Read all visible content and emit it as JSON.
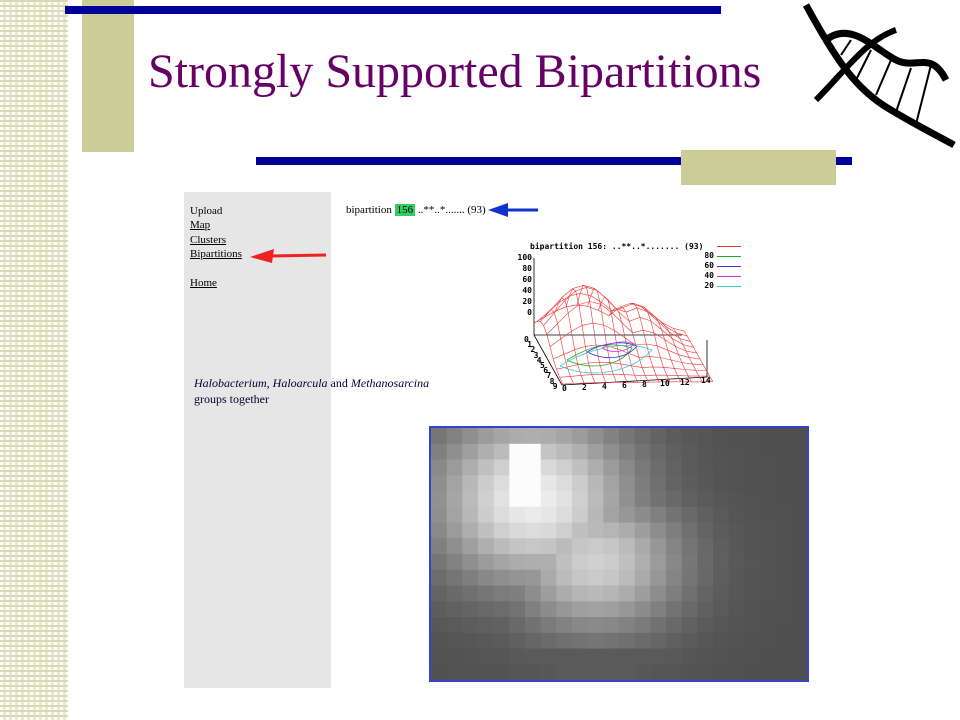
{
  "slide": {
    "title": "Strongly Supported Bipartitions"
  },
  "nav": {
    "upload": "Upload",
    "map": "Map",
    "clusters": "Clusters",
    "bipartitions": "Bipartitions",
    "home": "Home"
  },
  "bipartition": {
    "label": "bipartition",
    "number": "156",
    "pattern": "..**..*.......",
    "support": "(93)"
  },
  "description": {
    "taxon1": "Halobacterium,",
    "taxon2": "Haloarcula",
    "and": "and",
    "taxon3": "Methanosarcina",
    "rest": "groups together"
  },
  "plot": {
    "heading": "bipartition 156: ..**..*....... (93)",
    "legend": [
      "80",
      "60",
      "40",
      "20"
    ],
    "legend_colors": [
      "#ee3333",
      "#22aa22",
      "#3333ee",
      "#cc33cc",
      "#33cccc"
    ],
    "z_ticks": [
      "100",
      "80",
      "60",
      "40",
      "20",
      "0"
    ],
    "x_ticks": [
      "0",
      "2",
      "4",
      "6",
      "8",
      "10",
      "12",
      "14"
    ],
    "y_ticks": [
      "0",
      "1",
      "2",
      "3",
      "4",
      "5",
      "6",
      "7",
      "8",
      "9"
    ]
  },
  "colors": {
    "title": "#660066",
    "rule": "#000099",
    "tan": "#cccc99",
    "highlight": "#33cc66"
  }
}
